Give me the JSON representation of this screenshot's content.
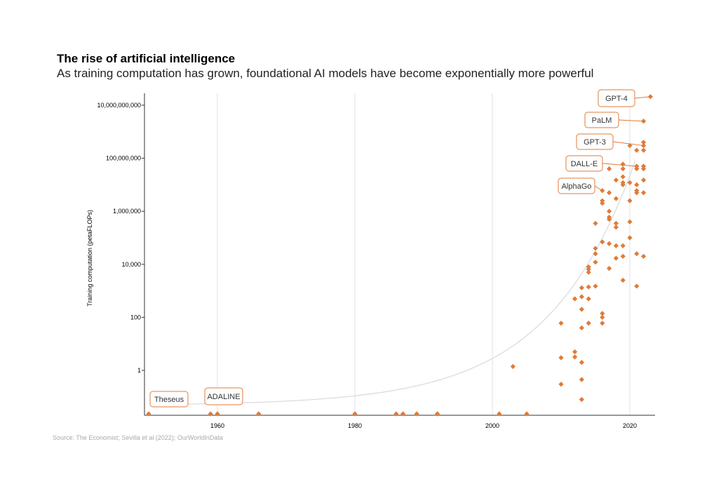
{
  "header": {
    "title": "The rise of artificial intelligence",
    "subtitle": "As training computation has grown, foundational AI models have become exponentially more powerful"
  },
  "footer": {
    "source": "Source: The Economist; Sevilla et al (2022); OurWorldInData"
  },
  "colors": {
    "marker": "#e07b39",
    "trend": "#d9d9d9",
    "grid": "#e0e0e0",
    "axis": "#333333"
  },
  "chart_data": {
    "type": "scatter",
    "title": "The rise of artificial intelligence",
    "subtitle": "As training computation has grown, foundational AI models have become exponentially more powerful",
    "xlabel": "",
    "ylabel": "Training computation (petaFLOPs)",
    "x_scale": "linear",
    "y_scale": "log",
    "xlim": [
      1950,
      2023
    ],
    "ylim": [
      0.004,
      30000000000
    ],
    "x_ticks": [
      {
        "value": 1960,
        "label": "1960"
      },
      {
        "value": 1980,
        "label": "1980"
      },
      {
        "value": 2000,
        "label": "2000"
      },
      {
        "value": 2020,
        "label": "2020"
      }
    ],
    "y_ticks": [
      {
        "value": 1,
        "label": "1"
      },
      {
        "value": 100,
        "label": "100"
      },
      {
        "value": 10000,
        "label": "10,000"
      },
      {
        "value": 1000000,
        "label": "1,000,000"
      },
      {
        "value": 100000000,
        "label": "100,000,000"
      },
      {
        "value": 10000000000,
        "label": "10,000,000,000"
      }
    ],
    "grid": "vertical",
    "trend_line": "exponential",
    "annotations": [
      {
        "text": "Theseus",
        "x": 1950,
        "y": 0.004
      },
      {
        "text": "ADALINE",
        "x": 1960,
        "y": 0.004
      },
      {
        "text": "AlphaGo",
        "x": 2016,
        "y": 6000000
      },
      {
        "text": "DALL-E",
        "x": 2021,
        "y": 50000000
      },
      {
        "text": "GPT-3",
        "x": 2022,
        "y": 300000000
      },
      {
        "text": "PaLM",
        "x": 2022,
        "y": 2500000000
      },
      {
        "text": "GPT-4",
        "x": 2023,
        "y": 21000000000
      }
    ],
    "points": [
      {
        "x": 1950,
        "y": 0.004
      },
      {
        "x": 1959,
        "y": 0.004
      },
      {
        "x": 1960,
        "y": 0.004
      },
      {
        "x": 1966,
        "y": 0.004
      },
      {
        "x": 1980,
        "y": 0.005
      },
      {
        "x": 1986,
        "y": 0.005
      },
      {
        "x": 1987,
        "y": 0.005
      },
      {
        "x": 1989,
        "y": 0.005
      },
      {
        "x": 1992,
        "y": 0.007
      },
      {
        "x": 1992,
        "y": 0.013
      },
      {
        "x": 2001,
        "y": 0.011
      },
      {
        "x": 2003,
        "y": 1.4
      },
      {
        "x": 2005,
        "y": 0.003
      },
      {
        "x": 2010,
        "y": 60
      },
      {
        "x": 2010,
        "y": 3
      },
      {
        "x": 2010,
        "y": 0.3
      },
      {
        "x": 2012,
        "y": 5
      },
      {
        "x": 2012,
        "y": 3.2
      },
      {
        "x": 2012,
        "y": 500
      },
      {
        "x": 2013,
        "y": 600
      },
      {
        "x": 2013,
        "y": 1300
      },
      {
        "x": 2013,
        "y": 200
      },
      {
        "x": 2013,
        "y": 40
      },
      {
        "x": 2013,
        "y": 2
      },
      {
        "x": 2013,
        "y": 0.45
      },
      {
        "x": 2013,
        "y": 0.08
      },
      {
        "x": 2014,
        "y": 500
      },
      {
        "x": 2014,
        "y": 1400
      },
      {
        "x": 2014,
        "y": 6500
      },
      {
        "x": 2014,
        "y": 8000
      },
      {
        "x": 2014,
        "y": 5000
      },
      {
        "x": 2014,
        "y": 60
      },
      {
        "x": 2015,
        "y": 1500
      },
      {
        "x": 2015,
        "y": 12000
      },
      {
        "x": 2015,
        "y": 25000
      },
      {
        "x": 2015,
        "y": 40000
      },
      {
        "x": 2015,
        "y": 350000
      },
      {
        "x": 2016,
        "y": 140
      },
      {
        "x": 2016,
        "y": 100
      },
      {
        "x": 2016,
        "y": 60
      },
      {
        "x": 2016,
        "y": 2000000
      },
      {
        "x": 2016,
        "y": 2500000
      },
      {
        "x": 2016,
        "y": 70000
      },
      {
        "x": 2016,
        "y": 6000000
      },
      {
        "x": 2017,
        "y": 7000
      },
      {
        "x": 2017,
        "y": 60000
      },
      {
        "x": 2017,
        "y": 500000
      },
      {
        "x": 2017,
        "y": 1000000
      },
      {
        "x": 2017,
        "y": 5000000
      },
      {
        "x": 2017,
        "y": 40000000
      },
      {
        "x": 2017,
        "y": 600000
      },
      {
        "x": 2018,
        "y": 17000
      },
      {
        "x": 2018,
        "y": 50000
      },
      {
        "x": 2018,
        "y": 250000
      },
      {
        "x": 2018,
        "y": 350000
      },
      {
        "x": 2018,
        "y": 3000000
      },
      {
        "x": 2018,
        "y": 15000000
      },
      {
        "x": 2019,
        "y": 2500
      },
      {
        "x": 2019,
        "y": 20000
      },
      {
        "x": 2019,
        "y": 50000
      },
      {
        "x": 2019,
        "y": 10000000
      },
      {
        "x": 2019,
        "y": 12000000
      },
      {
        "x": 2019,
        "y": 40000000
      },
      {
        "x": 2019,
        "y": 60000000
      },
      {
        "x": 2019,
        "y": 20000000
      },
      {
        "x": 2020,
        "y": 100000
      },
      {
        "x": 2020,
        "y": 400000
      },
      {
        "x": 2020,
        "y": 2500000
      },
      {
        "x": 2020,
        "y": 12000000
      },
      {
        "x": 2020,
        "y": 300000000
      },
      {
        "x": 2021,
        "y": 1500
      },
      {
        "x": 2021,
        "y": 25000
      },
      {
        "x": 2021,
        "y": 5000000
      },
      {
        "x": 2021,
        "y": 6000000
      },
      {
        "x": 2021,
        "y": 10000000
      },
      {
        "x": 2021,
        "y": 40000000
      },
      {
        "x": 2021,
        "y": 50000000
      },
      {
        "x": 2021,
        "y": 200000000
      },
      {
        "x": 2022,
        "y": 20000
      },
      {
        "x": 2022,
        "y": 5000000
      },
      {
        "x": 2022,
        "y": 15000000
      },
      {
        "x": 2022,
        "y": 40000000
      },
      {
        "x": 2022,
        "y": 50000000
      },
      {
        "x": 2022,
        "y": 200000000
      },
      {
        "x": 2022,
        "y": 300000000
      },
      {
        "x": 2022,
        "y": 400000000
      },
      {
        "x": 2022,
        "y": 2500000000
      },
      {
        "x": 2023,
        "y": 21000000000
      }
    ]
  }
}
